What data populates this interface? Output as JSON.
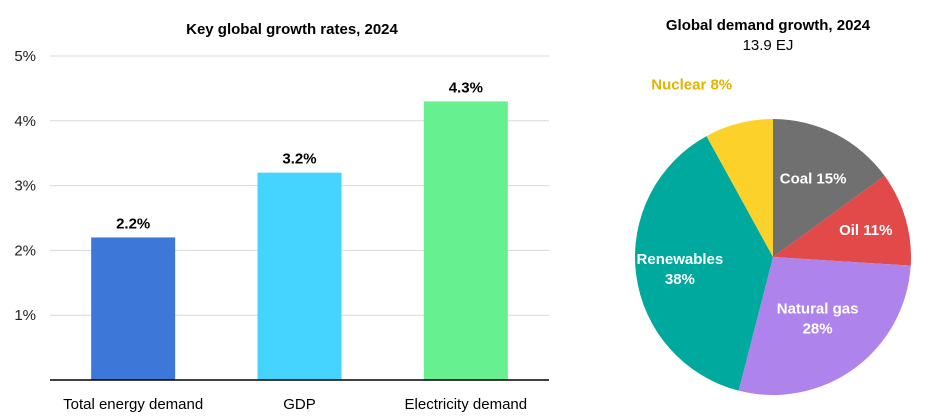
{
  "chart_data": [
    {
      "type": "bar",
      "title": "Key global growth rates, 2024",
      "categories": [
        "Total energy demand",
        "GDP",
        "Electricity demand"
      ],
      "values": [
        2.2,
        3.2,
        4.3
      ],
      "value_labels": [
        "2.2%",
        "3.2%",
        "4.3%"
      ],
      "colors": [
        "#3D78D8",
        "#45D3FF",
        "#66F08F"
      ],
      "ylim": [
        0,
        5
      ],
      "yticks": [
        1,
        2,
        3,
        4,
        5
      ],
      "ytick_labels": [
        "1%",
        "2%",
        "3%",
        "4%",
        "5%"
      ],
      "grid": true,
      "xlabel": "",
      "ylabel": ""
    },
    {
      "type": "pie",
      "title": "Global demand growth, 2024",
      "subtitle": "13.9 EJ",
      "slices": [
        {
          "name": "Coal",
          "value": 15,
          "label": "Coal 15%",
          "color": "#707070",
          "text_color": "#ffffff"
        },
        {
          "name": "Oil",
          "value": 11,
          "label": "Oil 11%",
          "color": "#E24A4A",
          "text_color": "#ffffff"
        },
        {
          "name": "Natural gas",
          "value": 28,
          "label": "Natural gas 28%",
          "color": "#AE84EC",
          "text_color": "#ffffff"
        },
        {
          "name": "Renewables",
          "value": 38,
          "label": "Renewables 38%",
          "color": "#00A99D",
          "text_color": "#ffffff"
        },
        {
          "name": "Nuclear",
          "value": 8,
          "label": "Nuclear 8%",
          "color": "#FCD12A",
          "text_color": "#E0B400"
        }
      ]
    }
  ]
}
